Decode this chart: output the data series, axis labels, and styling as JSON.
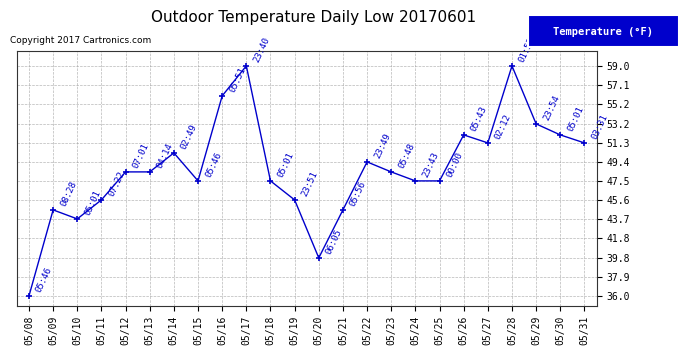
{
  "title": "Outdoor Temperature Daily Low 20170601",
  "copyright_text": "Copyright 2017 Cartronics.com",
  "legend_label": "Temperature (°F)",
  "x_labels": [
    "05/08",
    "05/09",
    "05/10",
    "05/11",
    "05/12",
    "05/13",
    "05/14",
    "05/15",
    "05/16",
    "05/17",
    "05/18",
    "05/19",
    "05/20",
    "05/21",
    "05/22",
    "05/23",
    "05/24",
    "05/25",
    "05/26",
    "05/27",
    "05/28",
    "05/29",
    "05/30",
    "05/31"
  ],
  "y_values": [
    36.0,
    44.6,
    43.7,
    45.6,
    48.4,
    48.4,
    50.3,
    47.5,
    56.0,
    59.0,
    47.5,
    45.6,
    39.8,
    44.6,
    49.4,
    48.4,
    47.5,
    47.5,
    52.1,
    51.3,
    59.0,
    53.2,
    52.1,
    51.3
  ],
  "point_labels": [
    "05:46",
    "08:28",
    "05:01",
    "07:22",
    "07:01",
    "04:14",
    "02:49",
    "05:46",
    "05:51",
    "23:40",
    "05:01",
    "23:51",
    "06:05",
    "05:56",
    "23:49",
    "05:48",
    "23:43",
    "00:00",
    "05:43",
    "02:12",
    "01:55",
    "23:54",
    "05:01",
    "03:31"
  ],
  "y_ticks": [
    36.0,
    37.9,
    39.8,
    41.8,
    43.7,
    45.6,
    47.5,
    49.4,
    51.3,
    53.2,
    55.2,
    57.1,
    59.0
  ],
  "y_min": 35.0,
  "y_max": 60.5,
  "line_color": "#0000cc",
  "marker_color": "#0000cc",
  "bg_color": "#ffffff",
  "grid_color": "#999999",
  "legend_bg": "#0000cc",
  "legend_fg": "#ffffff",
  "title_fontsize": 11,
  "label_fontsize": 6.5,
  "tick_fontsize": 7,
  "copyright_fontsize": 6.5
}
